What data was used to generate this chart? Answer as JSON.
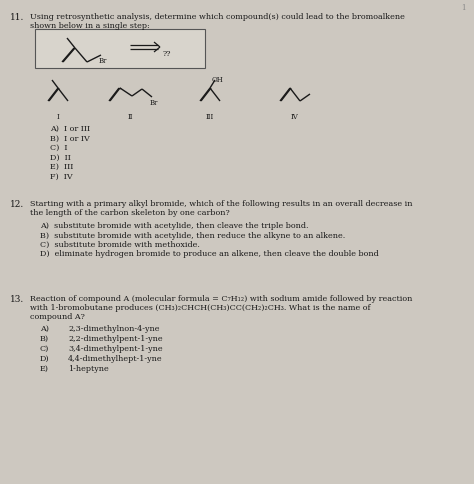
{
  "bg_color": "#cdc8c0",
  "q11_number": "11.",
  "q11_text_line1": "Using retrosynthetic analysis, determine which compound(s) could lead to the bromoalkene",
  "q11_text_line2": "shown below in a single step:",
  "q11_choices": [
    "A)  I or III",
    "B)  I or IV",
    "C)  I",
    "D)  II",
    "E)  III",
    "F)  IV"
  ],
  "q12_number": "12.",
  "q12_text_line1": "Starting with a primary alkyl bromide, which of the following results in an overall decrease in",
  "q12_text_line2": "the length of the carbon skeleton by one carbon?",
  "q12_choices": [
    "A)  substitute bromide with acetylide, then cleave the triple bond.",
    "B)  substitute bromide with acetylide, then reduce the alkyne to an alkene.",
    "C)  substitute bromide with methoxide.",
    "D)  eliminate hydrogen bromide to produce an alkene, then cleave the double bond"
  ],
  "q13_number": "13.",
  "q13_text_line1": "Reaction of compound A (molecular formula = C₇H₁₂) with sodium amide followed by reaction",
  "q13_text_line2": "with 1-bromobutane produces (CH₃)₂CHCH(CH₃)CC(CH₂)₂CH₃. What is the name of",
  "q13_text_line3": "compound A?",
  "q13_choices_letter": [
    "A)",
    "B)",
    "C)",
    "D)",
    "E)"
  ],
  "q13_choices_text": [
    "2,3-dimethylnon-4-yne",
    "2,2-dimethylpent-1-yne",
    "3,4-dimethylpent-1-yne",
    "4,4-dimethylhept-1-yne",
    "1-heptyne"
  ],
  "font_size_body": 5.8,
  "font_size_number": 6.5,
  "font_size_chem": 5.0,
  "line_color": "#1a1a1a",
  "text_color": "#1a1a1a"
}
